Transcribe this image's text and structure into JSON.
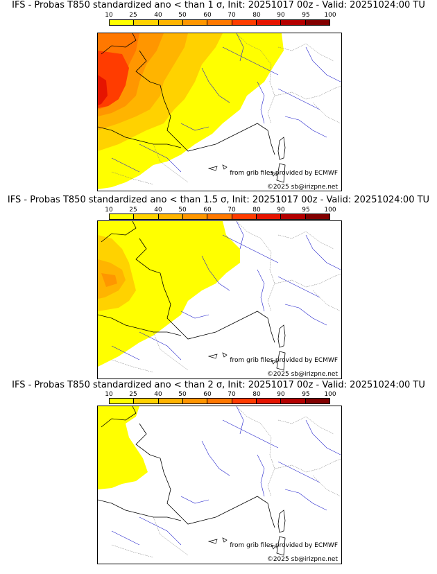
{
  "legend": {
    "ticks": [
      "10",
      "25",
      "40",
      "50",
      "60",
      "70",
      "80",
      "90",
      "95",
      "100"
    ],
    "colors": [
      "#ffff00",
      "#ffd200",
      "#ffb400",
      "#ff9600",
      "#ff7800",
      "#ff3c00",
      "#e61400",
      "#b40000",
      "#820000"
    ]
  },
  "panels": [
    {
      "title": "IFS - Probas T850  standardized ano < than 1 σ, Init: 20251017 00z - Valid: 20251024:00 TU",
      "source_note": "from grib files provided by ECMWF",
      "copyright": "©2025 sb@irizpne.net"
    },
    {
      "title": "IFS - Probas T850  standardized ano < than 1.5 σ, Init: 20251017 00z - Valid: 20251024:00 TU",
      "source_note": "from grib files provided by ECMWF",
      "copyright": "©2025 sb@irizpne.net"
    },
    {
      "title": "IFS - Probas T850  standardized ano < than 2 σ, Init: 20251017 00z - Valid: 20251024:00 TU",
      "source_note": "from grib files provided by ECMWF",
      "copyright": "©2025 sb@irizpne.net"
    }
  ]
}
